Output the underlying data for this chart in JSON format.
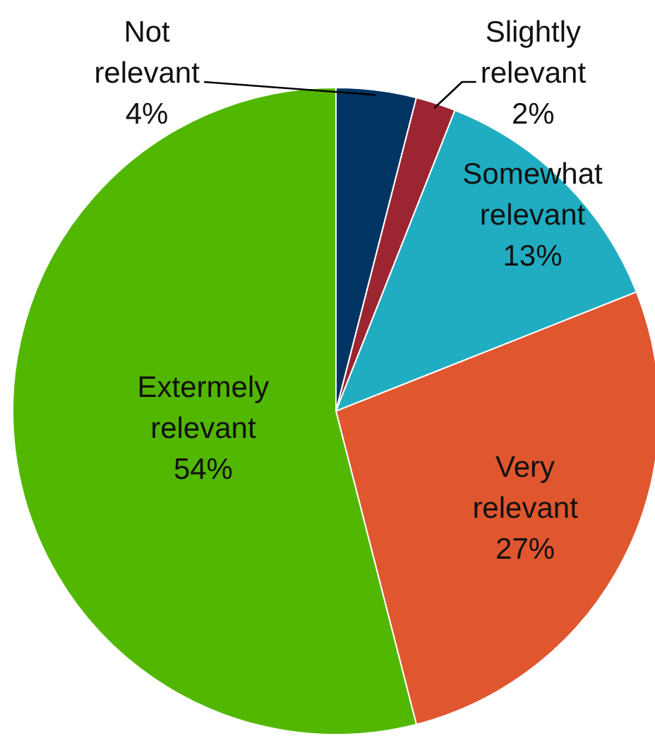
{
  "chart_data": {
    "type": "pie",
    "categories": [
      "Not relevant",
      "Slightly relevant",
      "Somewhat relevant",
      "Very relevant",
      "Extermely relevant"
    ],
    "values": [
      4,
      2,
      13,
      27,
      54
    ],
    "colors": [
      "#003462",
      "#9b2530",
      "#21adc1",
      "#e0562f",
      "#52b700"
    ],
    "value_labels": [
      "4%",
      "2%",
      "13%",
      "27%",
      "54%"
    ]
  }
}
